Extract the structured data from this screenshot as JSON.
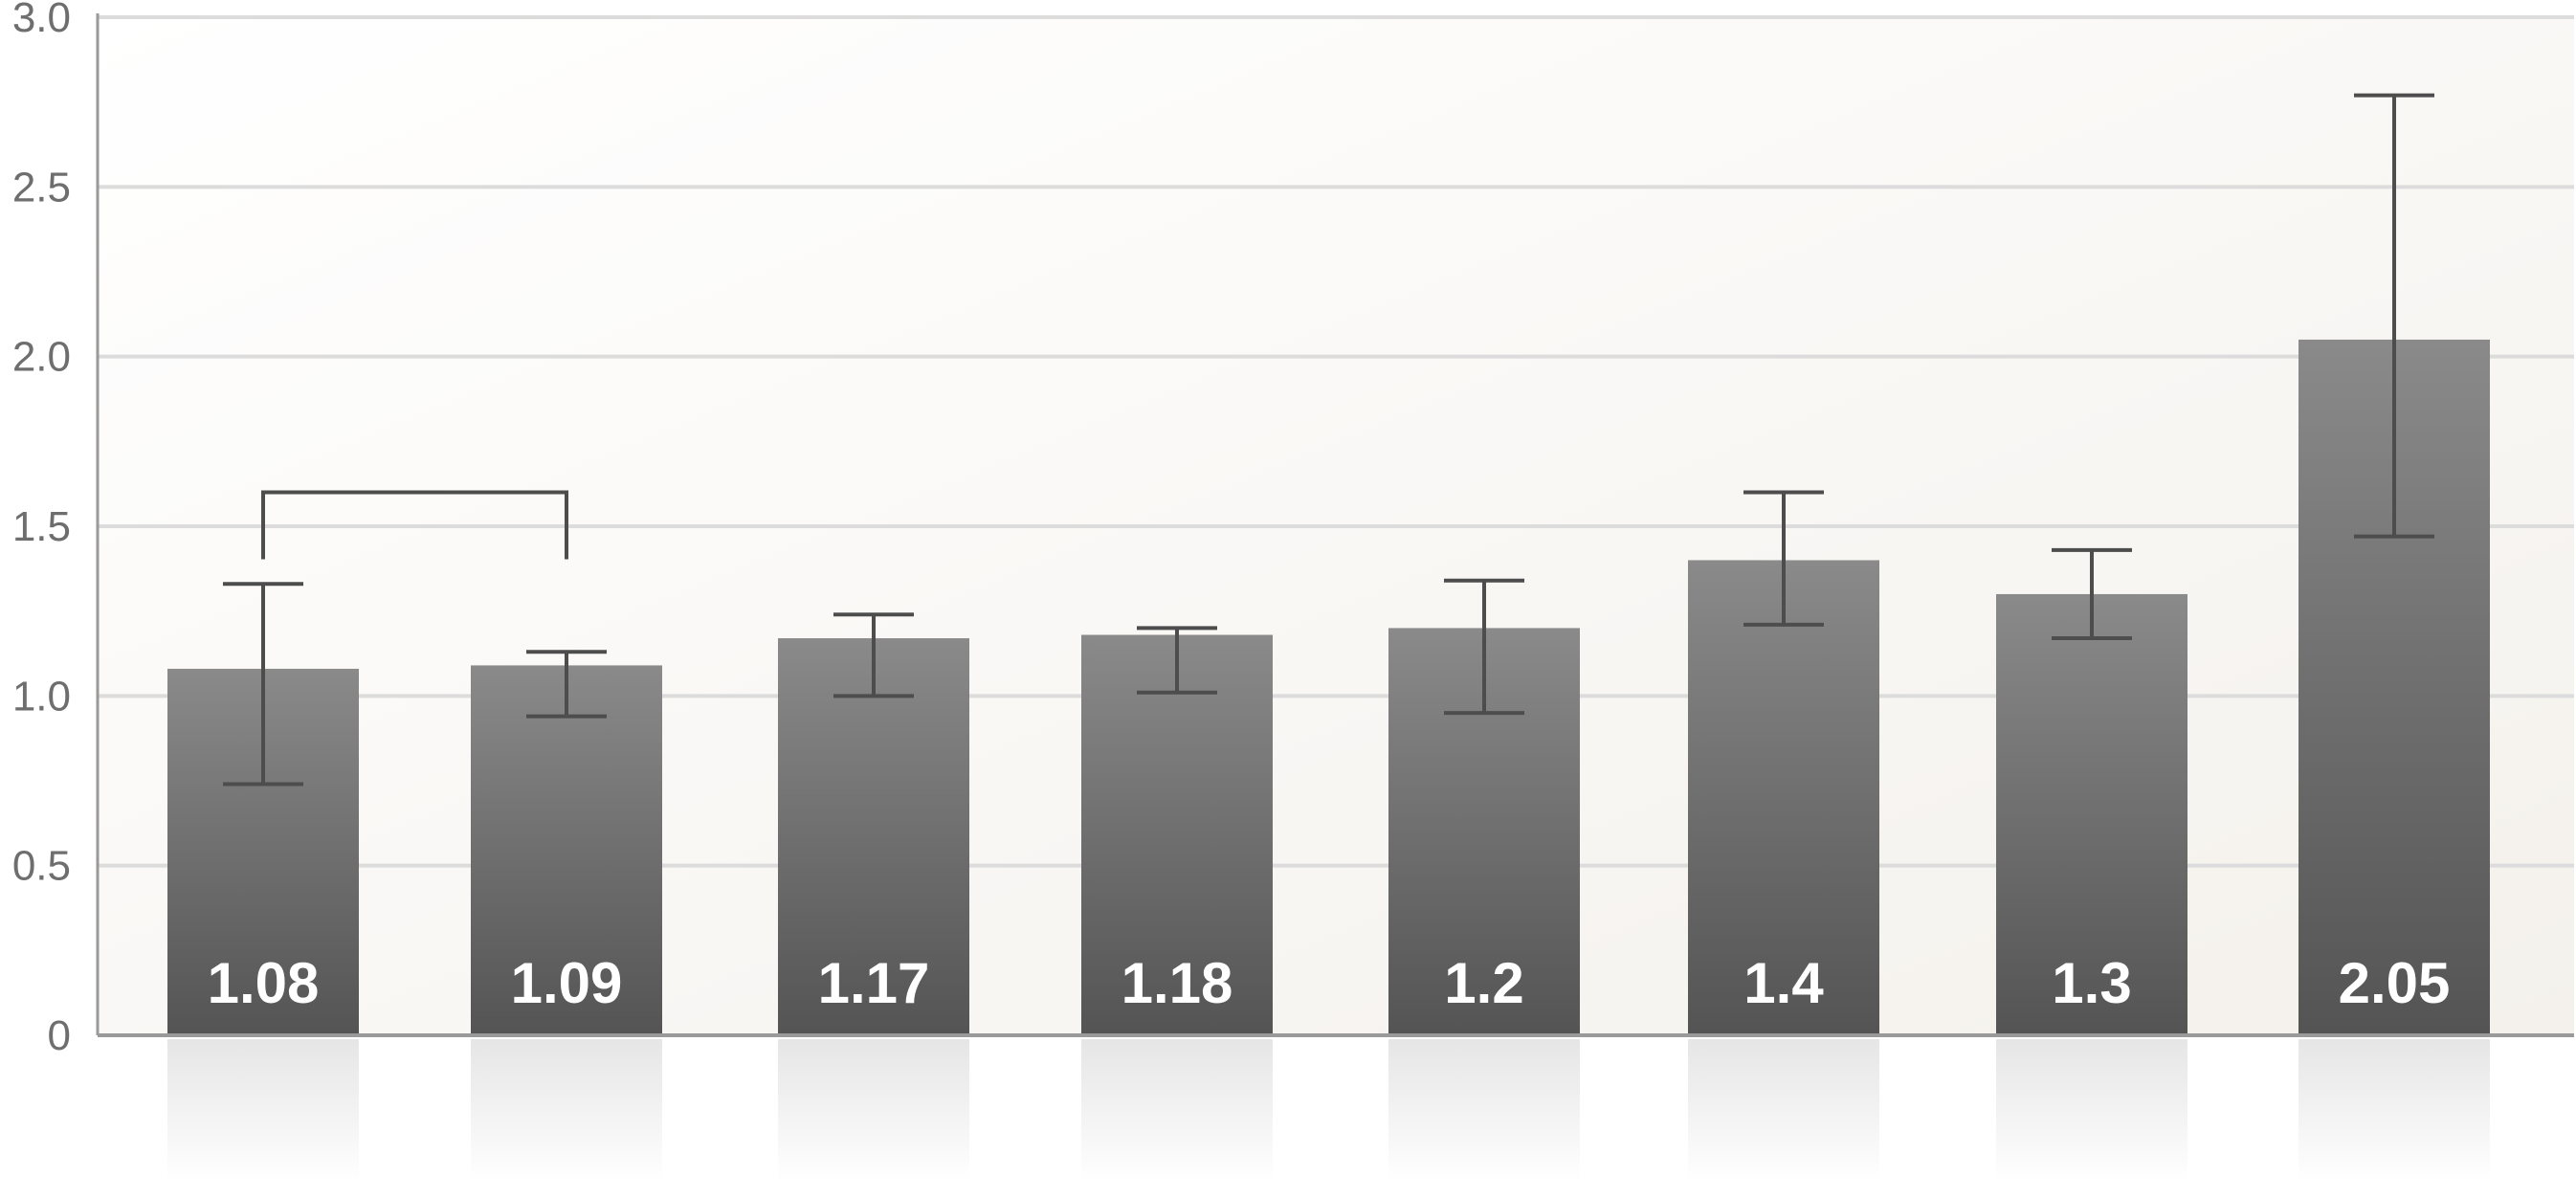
{
  "chart_data": {
    "type": "bar",
    "title": "",
    "xlabel": "",
    "ylabel": "",
    "ylim": [
      0,
      3.0
    ],
    "yticks": [
      0,
      0.5,
      1.0,
      1.5,
      2.0,
      2.5,
      3.0
    ],
    "ytick_labels": [
      "0",
      "0.5",
      "1.0",
      "1.5",
      "2.0",
      "2.5",
      "3.0"
    ],
    "grid": true,
    "legend": "none",
    "values": [
      1.08,
      1.09,
      1.17,
      1.18,
      1.2,
      1.4,
      1.3,
      2.05
    ],
    "value_labels": [
      "1.08",
      "1.09",
      "1.17",
      "1.18",
      "1.2",
      "1.4",
      "1.3",
      "2.05"
    ],
    "error_low": [
      0.74,
      0.94,
      1.0,
      1.01,
      0.95,
      1.21,
      1.17,
      1.47
    ],
    "error_high": [
      1.33,
      1.13,
      1.24,
      1.2,
      1.34,
      1.6,
      1.43,
      2.77
    ],
    "comparison_brackets": [
      {
        "from_bar": 0,
        "to_bar": 1,
        "y": 1.6
      }
    ],
    "bar_color_top": "#8a8a8a",
    "bar_color_bottom": "#545454",
    "error_bar_color": "#4d4d4d",
    "grid_color": "#dcdcdc",
    "axis_color": "#9a9a9a"
  }
}
